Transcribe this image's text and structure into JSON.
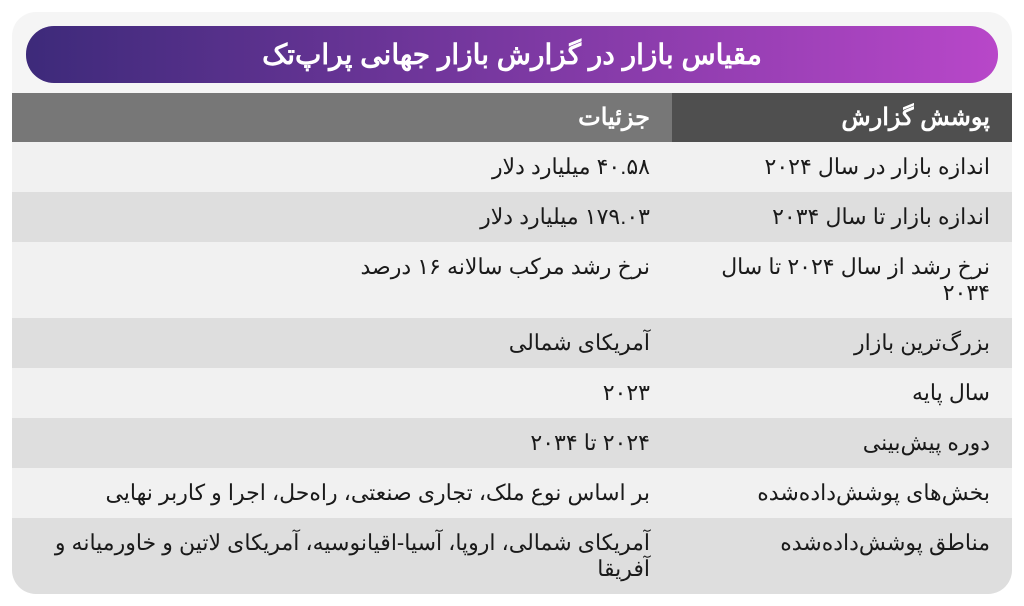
{
  "title": "مقیاس بازار در گزارش بازار جهانی پراپ‌تک",
  "title_gradient_start": "#3d2a7a",
  "title_gradient_end": "#b847c9",
  "header": {
    "label": "پوشش گزارش",
    "detail": "جزئیات",
    "bg_label": "#4f4f4f",
    "bg_detail": "#777777",
    "text_color": "#ffffff"
  },
  "row_bg_odd": "#f1f1f1",
  "row_bg_even": "#dedede",
  "text_color": "#1a1a1a",
  "rows": [
    {
      "label": "اندازه بازار در سال ۲۰۲۴",
      "detail": "۴۰.۵۸ میلیارد دلار"
    },
    {
      "label": "اندازه بازار تا سال ۲۰۳۴",
      "detail": "۱۷۹.۰۳ میلیارد دلار"
    },
    {
      "label": "نرخ رشد از سال ۲۰۲۴ تا سال ۲۰۳۴",
      "detail": "نرخ رشد مرکب سالانه ۱۶ درصد"
    },
    {
      "label": "بزرگ‌ترین بازار",
      "detail": "آمریکای شمالی"
    },
    {
      "label": "سال پایه",
      "detail": "۲۰۲۳"
    },
    {
      "label": "دوره پیش‌بینی",
      "detail": "۲۰۲۴ تا ۲۰۳۴"
    },
    {
      "label": "بخش‌های پوشش‌داده‌شده",
      "detail": "بر اساس نوع ملک، تجاری صنعتی، راه‌حل، اجرا و کاربر نهایی"
    },
    {
      "label": "مناطق پوشش‌داده‌شده",
      "detail": "آمریکای شمالی، اروپا، آسیا-اقیانوسیه، آمریکای لاتین و خاورمیانه و آفریقا"
    }
  ]
}
